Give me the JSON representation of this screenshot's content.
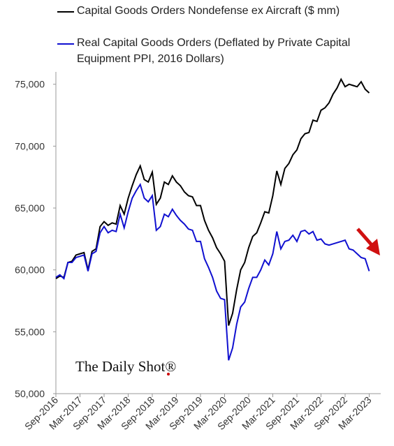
{
  "chart_data": {
    "type": "line",
    "watermark": "The Daily Shot®",
    "categories": [
      "Sep-2016",
      null,
      null,
      null,
      null,
      null,
      "Mar-2017",
      null,
      null,
      null,
      null,
      null,
      "Sep-2017",
      null,
      null,
      null,
      null,
      null,
      "Mar-2018",
      null,
      null,
      null,
      null,
      null,
      "Sep-2018",
      null,
      null,
      null,
      null,
      null,
      "Mar-2019",
      null,
      null,
      null,
      null,
      null,
      "Sep-2019",
      null,
      null,
      null,
      null,
      null,
      "Mar-2020",
      null,
      null,
      null,
      null,
      null,
      "Sep-2020",
      null,
      null,
      null,
      null,
      null,
      "Mar-2021",
      null,
      null,
      null,
      null,
      null,
      "Sep-2021",
      null,
      null,
      null,
      null,
      null,
      "Mar-2022",
      null,
      null,
      null,
      null,
      null,
      "Sep-2022",
      null,
      null,
      null,
      null,
      null,
      "Mar-2023"
    ],
    "series": [
      {
        "name": "Capital Goods Orders Nondefense ex Aircraft ($ mm)",
        "color": "#000000",
        "values": [
          59300,
          59500,
          59400,
          60600,
          60700,
          61200,
          61300,
          61400,
          60000,
          61500,
          61700,
          63500,
          63900,
          63600,
          63800,
          63700,
          65200,
          64500,
          65800,
          66800,
          67700,
          68400,
          67300,
          67100,
          67900,
          65300,
          65800,
          67100,
          66900,
          67600,
          67100,
          66800,
          66300,
          66000,
          65900,
          65200,
          65200,
          64000,
          63200,
          62600,
          61800,
          61300,
          60700,
          55500,
          56500,
          58400,
          60000,
          60600,
          61800,
          62700,
          63000,
          63800,
          64700,
          64600,
          66000,
          68000,
          66900,
          68200,
          68600,
          69300,
          69700,
          70600,
          71000,
          71100,
          72100,
          72000,
          72900,
          73100,
          73500,
          74200,
          74700,
          75400,
          74800,
          75000,
          74900,
          74800,
          75200,
          74600,
          74300
        ]
      },
      {
        "name": "Real Capital Goods Orders (Deflated by Private Capital Equipment PPI, 2016 Dollars)",
        "color": "#1010d0",
        "values": [
          59400,
          59600,
          59300,
          60600,
          60600,
          61000,
          61100,
          61200,
          59900,
          61300,
          61500,
          63000,
          63500,
          63000,
          63200,
          63100,
          64500,
          63400,
          64700,
          65800,
          66400,
          66900,
          65800,
          65500,
          66000,
          63200,
          63500,
          64500,
          64300,
          64900,
          64400,
          64000,
          63700,
          63300,
          63200,
          62300,
          62300,
          60900,
          60200,
          59400,
          58300,
          57700,
          57600,
          52700,
          53700,
          55600,
          57000,
          57400,
          58500,
          59400,
          59400,
          60000,
          60800,
          60400,
          61300,
          63100,
          61700,
          62300,
          62400,
          62800,
          62300,
          63100,
          63200,
          62900,
          63100,
          62400,
          62500,
          62100,
          62000,
          62100,
          62200,
          62300,
          62400,
          61700,
          61600,
          61300,
          61000,
          60900,
          59900
        ]
      }
    ],
    "ylim": [
      50000,
      76000
    ],
    "yticks": [
      {
        "value": 50000,
        "label": "50,000"
      },
      {
        "value": 55000,
        "label": "55,000"
      },
      {
        "value": 60000,
        "label": "60,000"
      },
      {
        "value": 65000,
        "label": "65,000"
      },
      {
        "value": 70000,
        "label": "70,000"
      },
      {
        "value": 75000,
        "label": "75,000"
      }
    ],
    "grid": false
  }
}
